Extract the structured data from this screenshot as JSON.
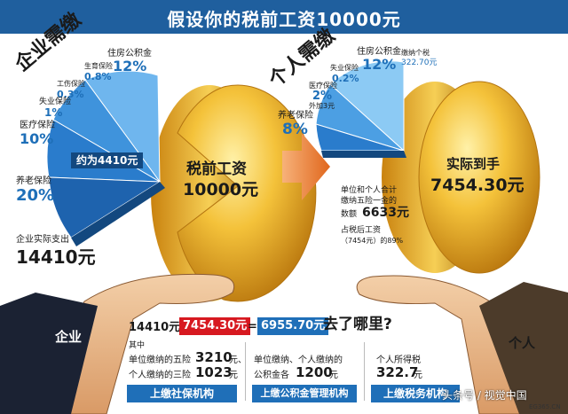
{
  "title": "假设你的税前工资10000元",
  "enterprise": {
    "heading": "企业需缴",
    "items": [
      {
        "label": "住房公积金",
        "value": "12%"
      },
      {
        "label": "生育保险",
        "value": "0.8%"
      },
      {
        "label": "工伤保险",
        "value": "0.3%"
      },
      {
        "label": "失业保险",
        "value": "1%"
      },
      {
        "label": "医疗保险",
        "value": "10%"
      },
      {
        "label": "养老保险",
        "value": "20%"
      }
    ],
    "approx": "约为4410元",
    "actual_label": "企业实际支出",
    "actual_value": "14410元"
  },
  "pretax": {
    "label": "税前工资",
    "value": "10000元"
  },
  "personal": {
    "heading": "个人需缴",
    "items": [
      {
        "label": "住房公积金",
        "value": "12%"
      },
      {
        "label": "失业保险",
        "value": "0.2%"
      },
      {
        "label": "医疗保险",
        "value": "2%",
        "extra": "外加3元"
      },
      {
        "label": "养老保险",
        "value": "8%"
      }
    ],
    "tax_label": "缴纳个税",
    "tax_value": "322.70元"
  },
  "net": {
    "label": "实际到手",
    "value": "7454.30元"
  },
  "notes": {
    "combined_l1": "单位和个人合计",
    "combined_l2": "缴纳五险一金的",
    "combined_l3": "数额",
    "combined_value": "6633元",
    "ratio_l1": "占税后工资",
    "ratio_l2": "（7454元）的89%"
  },
  "hand_labels": {
    "enterprise": "企业",
    "personal": "个人"
  },
  "formula": {
    "a": "14410元-",
    "b": "7454.30元",
    "c": "=",
    "d": "6955.70元",
    "e": "去了哪里?"
  },
  "columns": [
    {
      "l0": "其中",
      "l1": "单位缴纳的五险",
      "v1": "3210",
      "u1": "元、",
      "l2": "个人缴纳的三险",
      "v2": "1023",
      "u2": "元",
      "button": "上缴社保机构"
    },
    {
      "l1": "单位缴纳、个人缴纳的",
      "l2": "公积金各",
      "v2": "1200",
      "u2": "元",
      "button": "上缴公积金管理机构"
    },
    {
      "l1": "个人所得税",
      "v2": "322.7",
      "u2": "元",
      "button": "上缴税务机构"
    }
  ],
  "watermark": "头条号 / 视觉中国",
  "watermark_small": "EG365.CN",
  "colors": {
    "brand_blue": "#1f5f9e",
    "accent_red": "#d71920",
    "gold": "#e8a317",
    "text_blue": "#1e6fb8"
  }
}
